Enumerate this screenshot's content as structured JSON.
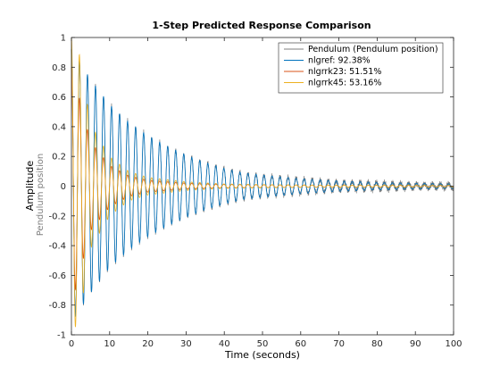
{
  "chart_data": {
    "type": "line",
    "title": "1-Step Predicted Response Comparison",
    "xlabel": "Time (seconds)",
    "ylabel": "Amplitude",
    "ylabel_sub": "Pendulum position",
    "xlim": [
      0,
      100
    ],
    "ylim": [
      -1,
      1
    ],
    "x_ticks": [
      0,
      10,
      20,
      30,
      40,
      50,
      60,
      70,
      80,
      90,
      100
    ],
    "y_ticks": [
      -1,
      -0.8,
      -0.6,
      -0.4,
      -0.2,
      0,
      0.2,
      0.4,
      0.6,
      0.8,
      1
    ],
    "grid": false,
    "legend_position": "top-right",
    "series": [
      {
        "name": "Pendulum (Pendulum position)",
        "color": "#7f7f7f",
        "envelope": [
          [
            0,
            0.92
          ],
          [
            5,
            0.72
          ],
          [
            10,
            0.55
          ],
          [
            15,
            0.43
          ],
          [
            20,
            0.34
          ],
          [
            25,
            0.27
          ],
          [
            30,
            0.21
          ],
          [
            35,
            0.16
          ],
          [
            40,
            0.12
          ],
          [
            45,
            0.09
          ],
          [
            50,
            0.075
          ],
          [
            60,
            0.05
          ],
          [
            70,
            0.035
          ],
          [
            80,
            0.025
          ],
          [
            90,
            0.02
          ],
          [
            100,
            0.015
          ]
        ],
        "period": 2.1
      },
      {
        "name": "nlgref: 92.38%",
        "color": "#0072bd",
        "envelope": [
          [
            0,
            0.92
          ],
          [
            5,
            0.72
          ],
          [
            10,
            0.55
          ],
          [
            15,
            0.43
          ],
          [
            20,
            0.34
          ],
          [
            25,
            0.27
          ],
          [
            30,
            0.21
          ],
          [
            35,
            0.16
          ],
          [
            40,
            0.12
          ],
          [
            45,
            0.09
          ],
          [
            50,
            0.075
          ],
          [
            60,
            0.05
          ],
          [
            70,
            0.035
          ],
          [
            80,
            0.025
          ],
          [
            90,
            0.02
          ],
          [
            100,
            0.015
          ]
        ],
        "period": 2.1
      },
      {
        "name": "nlgrrk23: 51.51%",
        "color": "#d95319",
        "envelope": [
          [
            0,
            0.8
          ],
          [
            5,
            0.3
          ],
          [
            10,
            0.14
          ],
          [
            15,
            0.07
          ],
          [
            20,
            0.04
          ],
          [
            30,
            0.02
          ],
          [
            40,
            0.012
          ],
          [
            60,
            0.008
          ],
          [
            100,
            0.005
          ]
        ],
        "period": 2.1
      },
      {
        "name": "nlgrrk45: 53.16%",
        "color": "#edb120",
        "envelope": [
          [
            0,
            1.0
          ],
          [
            2,
            0.9
          ],
          [
            5,
            0.42
          ],
          [
            10,
            0.2
          ],
          [
            15,
            0.1
          ],
          [
            20,
            0.06
          ],
          [
            30,
            0.03
          ],
          [
            40,
            0.015
          ],
          [
            60,
            0.008
          ],
          [
            100,
            0.005
          ]
        ],
        "period": 2.1
      }
    ]
  }
}
